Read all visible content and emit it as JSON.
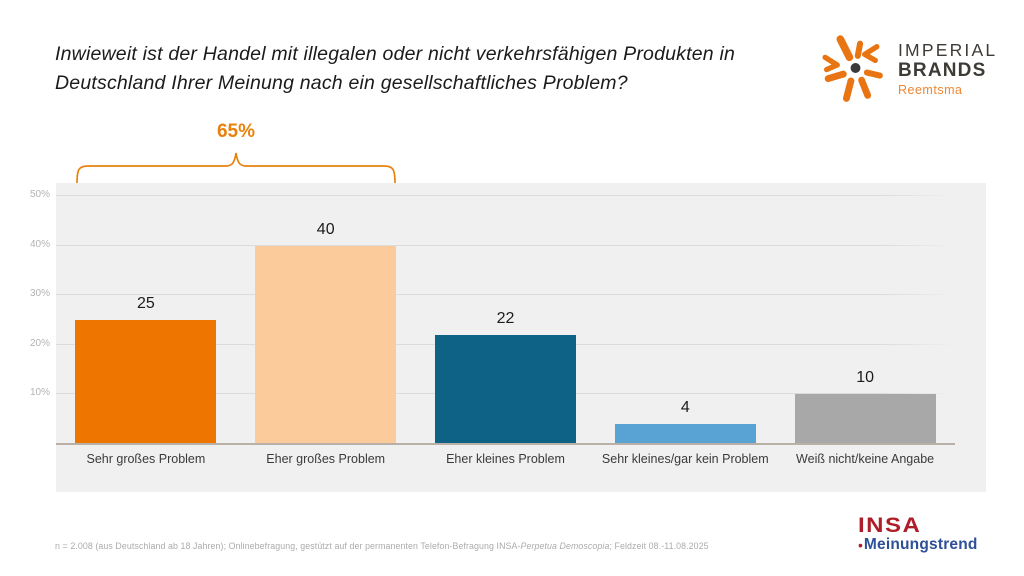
{
  "title": {
    "line1": "Inwieweit ist der Handel mit illegalen oder nicht verkehrsfähigen Produkten in",
    "line2": "Deutschland Ihrer Meinung nach ein gesellschaftliches Problem?"
  },
  "imperial_logo": {
    "line1": "IMPERIAL",
    "line2": "BRANDS",
    "sub": "Reemtsma",
    "mark_color": "#E87511",
    "text_color": "#3E3B37",
    "sub_color": "#EE8633"
  },
  "annotation": {
    "label": "65%",
    "color": "#E8820C",
    "covers": [
      "Sehr großes Problem",
      "Eher großes Problem"
    ]
  },
  "chart_data": {
    "type": "bar",
    "title": "",
    "xlabel": "",
    "ylabel": "",
    "categories": [
      "Sehr großes Problem",
      "Eher großes Problem",
      "Eher kleines Problem",
      "Sehr kleines/gar kein Problem",
      "Weiß nicht/keine Angabe"
    ],
    "values": [
      25,
      40,
      22,
      4,
      10
    ],
    "value_labels": [
      "25",
      "40",
      "22",
      "4",
      "10"
    ],
    "bar_colors": [
      "#EE7500",
      "#FBCB9B",
      "#0E6285",
      "#58A2D4",
      "#A8A8A8"
    ],
    "unit": "percent",
    "y_ticks": [
      "10%",
      "20%",
      "30%",
      "40%",
      "50%"
    ],
    "ylim": [
      0,
      52
    ],
    "grid": true,
    "legend": false,
    "plot_background": "#F0F0F0",
    "annotation_sum_first_two": "65%"
  },
  "footnote": {
    "part1": "n = 2.008 (aus Deutschland ab 18 Jahren); Onlinebefragung, gestützt auf der permanenten Telefon-Befragung INSA-",
    "italic": "Perpetua Demoscopia",
    "part2": "; Feldzeit 08.-11.08.2025"
  },
  "insa_logo": {
    "name": "INSA",
    "bullet": "•",
    "sub": "Meinungstrend",
    "name_color": "#AF1E28",
    "sub_color": "#2D5096"
  }
}
